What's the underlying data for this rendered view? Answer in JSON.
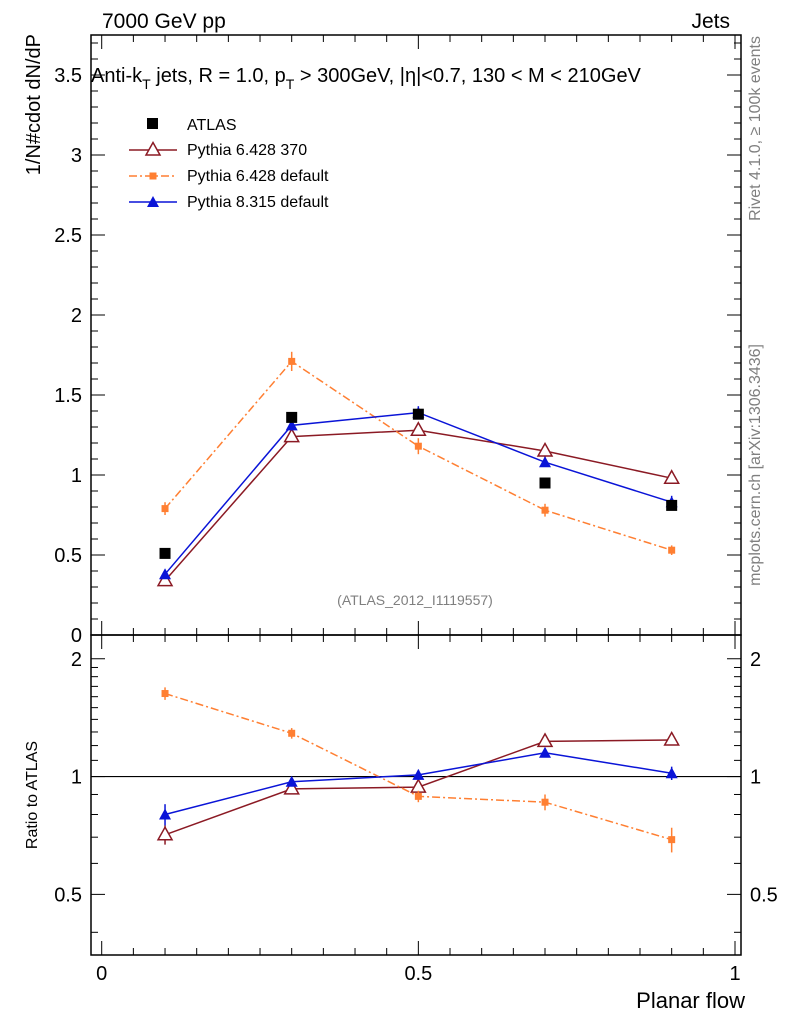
{
  "header": {
    "left": "7000 GeV pp",
    "right": "Jets"
  },
  "side": {
    "rivet": "Rivet 4.1.0, ≥ 100k events",
    "mcplots": "mcplots.cern.ch [arXiv:1306.3436]"
  },
  "chart_data": {
    "type": "scatter",
    "title": {
      "p1": "Anti-k",
      "p1_sub": "T",
      "p2": " jets, R = 1.0, p",
      "p2_sub": "T",
      "p3": " > 300GeV, |η|<0.7, 130 < M < 210GeV"
    },
    "watermark": "(ATLAS_2012_I1119557)",
    "xlabel": "Planar flow",
    "ylabel": "1/N#cdot dN/dP",
    "ratio_ylabel": "Ratio to ATLAS",
    "xlim": [
      0,
      1
    ],
    "ylim": [
      0,
      3.75
    ],
    "ratio_ylim": [
      0.35,
      2.3
    ],
    "x_ticks": [
      "0",
      "0.5",
      "1"
    ],
    "y_ticks": [
      "0",
      "0.5",
      "1",
      "1.5",
      "2",
      "2.5",
      "3",
      "3.5"
    ],
    "ratio_ticks": [
      "0.5",
      "1",
      "2"
    ],
    "x": [
      0.1,
      0.3,
      0.5,
      0.7,
      0.9
    ],
    "series": [
      {
        "name": "ATLAS",
        "color": "#000000",
        "marker": "square",
        "values": [
          0.51,
          1.36,
          1.38,
          0.95,
          0.81
        ],
        "ratio": [
          1.0,
          1.0,
          1.0,
          1.0,
          1.0
        ]
      },
      {
        "name": "Pythia 6.428 370",
        "color": "#8b1a24",
        "marker": "triangle-open",
        "values": [
          0.34,
          1.24,
          1.28,
          1.15,
          0.98
        ],
        "errors": [
          0.02,
          0.03,
          0.03,
          0.04,
          0.03
        ],
        "ratio": [
          0.71,
          0.93,
          0.94,
          1.23,
          1.24
        ],
        "ratio_errors": [
          0.04,
          0.02,
          0.02,
          0.03,
          0.03
        ]
      },
      {
        "name": "Pythia 6.428 default",
        "color": "#ff7f32",
        "marker": "square-small",
        "values": [
          0.79,
          1.71,
          1.18,
          0.78,
          0.53
        ],
        "errors": [
          0.04,
          0.06,
          0.05,
          0.04,
          0.03
        ],
        "ratio": [
          1.63,
          1.29,
          0.89,
          0.86,
          0.69
        ],
        "ratio_errors": [
          0.06,
          0.04,
          0.03,
          0.04,
          0.05
        ]
      },
      {
        "name": "Pythia 8.315 default",
        "color": "#0a14d7",
        "marker": "triangle",
        "values": [
          0.38,
          1.31,
          1.39,
          1.08,
          0.83
        ],
        "errors": [
          0.02,
          0.03,
          0.04,
          0.03,
          0.04
        ],
        "ratio": [
          0.8,
          0.97,
          1.01,
          1.15,
          1.02
        ],
        "ratio_errors": [
          0.05,
          0.02,
          0.03,
          0.03,
          0.04
        ]
      }
    ]
  }
}
